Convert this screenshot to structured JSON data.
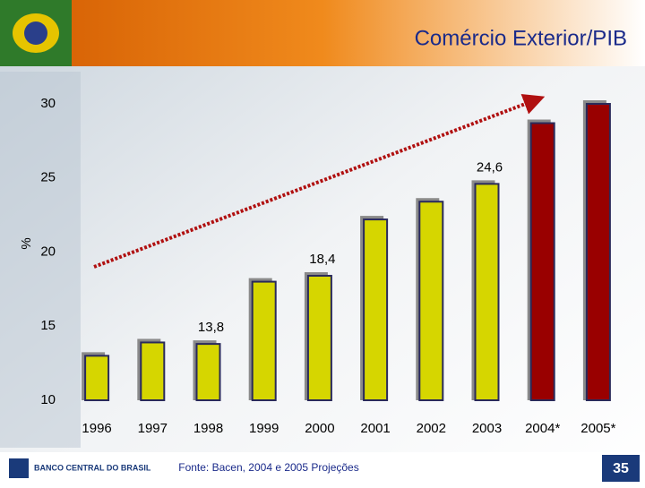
{
  "chart_data": {
    "type": "bar",
    "title": "Comércio Exterior/PIB",
    "y_label": "%",
    "categories": [
      "1996",
      "1997",
      "1998",
      "1999",
      "2000",
      "2001",
      "2002",
      "2003",
      "2004*",
      "2005*"
    ],
    "values": [
      13.0,
      13.9,
      13.8,
      18.0,
      18.4,
      22.2,
      23.4,
      24.6,
      28.7,
      30.0
    ],
    "value_labels": [
      null,
      null,
      "13,8",
      null,
      "18,4",
      null,
      null,
      "24,6",
      null,
      null
    ],
    "colors": [
      "#d6d600",
      "#d6d600",
      "#d6d600",
      "#d6d600",
      "#d6d600",
      "#d6d600",
      "#d6d600",
      "#d6d600",
      "#990000",
      "#990000"
    ],
    "ylim": [
      10,
      30
    ],
    "yticks": [
      10,
      15,
      20,
      25,
      30
    ],
    "grid": false
  },
  "logo_text": "BANCO CENTRAL DO BRASIL",
  "source": "Fonte: Bacen, 2004 e 2005 Projeções",
  "page_number": "35"
}
